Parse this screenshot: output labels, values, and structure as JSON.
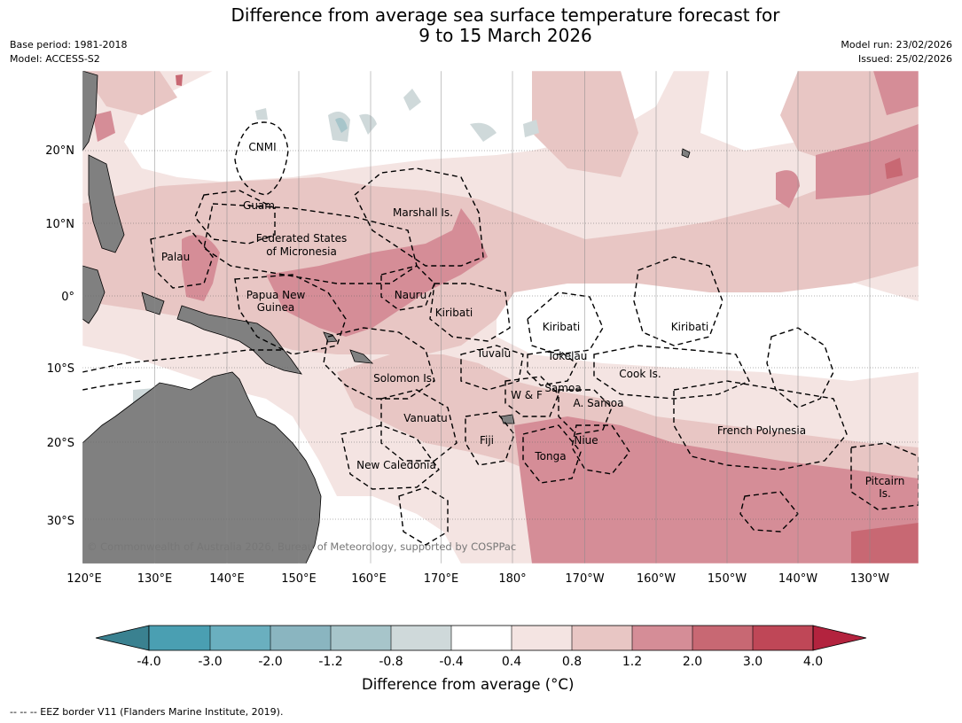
{
  "header": {
    "title_line1": "Difference from average sea surface temperature forecast for",
    "title_line2": "9 to 15 March 2026",
    "base_period": "Base period: 1981-2018",
    "model": "Model: ACCESS-S2",
    "model_run": "Model run: 23/02/2026",
    "issued": "Issued: 25/02/2026"
  },
  "map": {
    "lat_labels": [
      "20°N",
      "10°N",
      "0°",
      "10°S",
      "20°S",
      "30°S"
    ],
    "lon_labels": [
      "120°E",
      "130°E",
      "140°E",
      "150°E",
      "160°E",
      "170°E",
      "180°",
      "170°W",
      "160°W",
      "150°W",
      "140°W",
      "130°W"
    ],
    "places": {
      "cnmi": "CNMI",
      "guam": "Guam",
      "marshall": "Marshall Is.",
      "fsm1": "Federated States",
      "fsm2": "of Micronesia",
      "palau": "Palau",
      "png1": "Papua New",
      "png2": "Guinea",
      "nauru": "Nauru",
      "kiribati_w": "Kiribati",
      "kiribati_c": "Kiribati",
      "kiribati_e": "Kiribati",
      "tuvalu": "Tuvalu",
      "tokelau": "Tokelau",
      "cook": "Cook Is.",
      "solomon": "Solomon Is.",
      "samoa": "Samoa",
      "wf": "W & F",
      "asamoa": "A. Samoa",
      "vanuatu": "Vanuatu",
      "fiji": "Fiji",
      "niue": "Niue",
      "tonga": "Tonga",
      "fp": "French Polynesia",
      "newcal": "New Caledonia",
      "pitcairn1": "Pitcairn",
      "pitcairn2": "Is."
    },
    "copyright": "© Commonwealth of Australia 2026, Bureau of Meteorology, supported by COSPPac"
  },
  "colorbar": {
    "title": "Difference from average (°C)",
    "ticks": [
      "-4.0",
      "-3.0",
      "-2.0",
      "-1.2",
      "-0.8",
      "-0.4",
      "0.4",
      "0.8",
      "1.2",
      "2.0",
      "3.0",
      "4.0"
    ],
    "colors": [
      "#3a8190",
      "#4a9fb2",
      "#6aafbf",
      "#8ab5c0",
      "#a7c5ca",
      "#cfd9da",
      "#ffffff",
      "#f4e4e2",
      "#e8c6c4",
      "#d58d97",
      "#c86873",
      "#bf4757",
      "#b3233e"
    ]
  },
  "footnote": "--  --  -- EEZ border V11 (Flanders Marine Institute, 2019)."
}
